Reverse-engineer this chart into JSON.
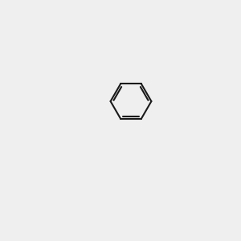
{
  "bg_color": "#efefef",
  "bond_color": "#1a1a1a",
  "o_color": "#ff0000",
  "n_color": "#0000ff",
  "cl_color": "#00cc00",
  "s_color": "#cccc00",
  "h_color": "#888888",
  "lw": 1.5,
  "figsize": [
    3.0,
    3.0
  ],
  "dpi": 100
}
